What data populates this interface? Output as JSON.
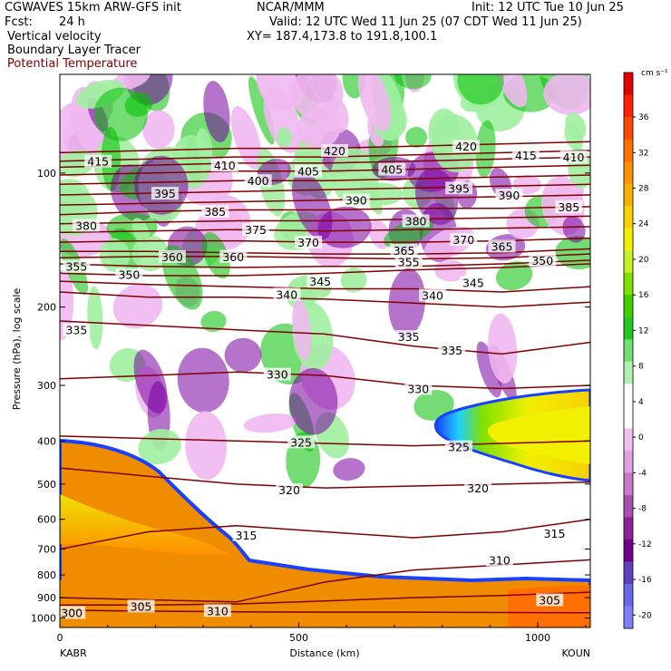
{
  "header": {
    "model": "CGWAVES 15km ARW-GFS init",
    "org": "NCAR/MMM",
    "init": "Init: 12 UTC Tue 10 Jun 25",
    "fcst_label": "Fcst:",
    "fcst_value": "24 h",
    "valid": "Valid: 12 UTC Wed 11 Jun 25 (07 CDT Wed 11 Jun 25)",
    "field1": "Vertical velocity",
    "xy": "XY= 187.4,173.8 to 191.8,100.1",
    "field2": "Boundary Layer Tracer",
    "field3": "Potential Temperature"
  },
  "colors": {
    "theta_line": "#800000",
    "theta_title": "#800000",
    "bl_tracer": "#f08c00",
    "up_dark": "#00c000",
    "up_light": "#a0f0a0",
    "down_light": "#f0b8f0",
    "down_dark": "#7800a0"
  },
  "chart_data": {
    "type": "heatmap",
    "title": "",
    "xlabel": "Distance (km)",
    "ylabel": "Pressure (hPa), log scale",
    "xlim": [
      0,
      1110
    ],
    "ylim": [
      1050,
      60
    ],
    "y_scale": "log",
    "x_ticks": [
      0,
      500,
      1000
    ],
    "y_ticks": [
      100,
      200,
      300,
      400,
      500,
      600,
      700,
      800,
      900,
      1000
    ],
    "endpoints": {
      "left": "KABR",
      "right": "KOUN"
    },
    "colorbar": {
      "unit": "cm s⁻¹",
      "tick_labels": [
        "36",
        "32",
        "28",
        "24",
        "20",
        "16",
        "12",
        "8",
        "4",
        "0",
        "-4",
        "-8",
        "-12",
        "-16",
        "-20"
      ],
      "colors": [
        "#e00000",
        "#ff2000",
        "#ff4800",
        "#ff7000",
        "#ff9000",
        "#f8b000",
        "#f8d000",
        "#f0f000",
        "#c8f028",
        "#80e000",
        "#40d000",
        "#20c820",
        "#70e070",
        "#b0f0b0",
        "#ffffff",
        "#ffffff",
        "#f0c0f0",
        "#e0a0e0",
        "#c878c8",
        "#a850b0",
        "#902098",
        "#700088",
        "#6040c0",
        "#6868e8",
        "#8080ff"
      ]
    },
    "theta_contours": [
      {
        "label": "300",
        "p": [
          960,
          965,
          968,
          970,
          970,
          972,
          973
        ]
      },
      {
        "label": "305",
        "p": [
          935,
          935,
          930,
          915,
          900,
          890,
          875
        ]
      },
      {
        "label": "310",
        "p": [
          900,
          910,
          920,
          830,
          780,
          760,
          740
        ]
      },
      {
        "label": "315",
        "p": [
          700,
          640,
          620,
          640,
          660,
          640,
          600
        ]
      },
      {
        "label": "320",
        "p": [
          460,
          480,
          500,
          510,
          505,
          500,
          495
        ]
      },
      {
        "label": "325",
        "p": [
          390,
          395,
          400,
          405,
          410,
          405,
          400
        ]
      },
      {
        "label": "330",
        "p": [
          290,
          285,
          280,
          285,
          300,
          305,
          300
        ]
      },
      {
        "label": "335",
        "p": [
          215,
          220,
          225,
          230,
          245,
          255,
          240
        ]
      },
      {
        "label": "340",
        "p": [
          185,
          190,
          190,
          192,
          196,
          200,
          195
        ]
      },
      {
        "label": "345",
        "p": [
          175,
          178,
          180,
          182,
          182,
          185,
          180
        ]
      },
      {
        "label": "350",
        "p": [
          168,
          170,
          170,
          168,
          165,
          163,
          160
        ]
      },
      {
        "label": "355",
        "p": [
          160,
          162,
          163,
          162,
          162,
          160,
          157
        ]
      },
      {
        "label": "360",
        "p": [
          155,
          154,
          154,
          155,
          156,
          155,
          152
        ]
      },
      {
        "label": "365",
        "p": [
          150,
          150,
          151,
          152,
          152,
          151,
          148
        ]
      },
      {
        "label": "370",
        "p": [
          143,
          142,
          142,
          143,
          143,
          142,
          140
        ]
      },
      {
        "label": "375",
        "p": [
          136,
          135,
          134,
          135,
          134,
          133,
          132
        ]
      },
      {
        "label": "380",
        "p": [
          130,
          129,
          128,
          128,
          127,
          126,
          125
        ]
      },
      {
        "label": "385",
        "p": [
          124,
          122,
          121,
          121,
          120,
          120,
          119
        ]
      },
      {
        "label": "390",
        "p": [
          118,
          117,
          116,
          115,
          114,
          113,
          112
        ]
      },
      {
        "label": "395",
        "p": [
          112,
          111,
          110,
          109,
          108,
          107,
          106
        ]
      },
      {
        "label": "400",
        "p": [
          106,
          105,
          104,
          104,
          103,
          102,
          101
        ]
      },
      {
        "label": "405",
        "p": [
          101,
          100,
          99,
          99,
          98,
          97,
          96
        ]
      },
      {
        "label": "410",
        "p": [
          97,
          96,
          95,
          95,
          94,
          93,
          92
        ]
      },
      {
        "label": "415",
        "p": [
          94,
          93,
          92,
          92,
          91,
          90,
          89
        ]
      },
      {
        "label": "420",
        "p": [
          90,
          89,
          88,
          88,
          87,
          86,
          85
        ]
      }
    ],
    "theta_x": [
      0,
      185,
      370,
      555,
      740,
      925,
      1110
    ],
    "theta_labels": [
      {
        "text": "300",
        "x": 25,
        "p": 972
      },
      {
        "text": "305",
        "x": 170,
        "p": 940
      },
      {
        "text": "310",
        "x": 330,
        "p": 962
      },
      {
        "text": "315",
        "x": 390,
        "p": 650
      },
      {
        "text": "310",
        "x": 920,
        "p": 740
      },
      {
        "text": "305",
        "x": 1025,
        "p": 910
      },
      {
        "text": "315",
        "x": 1035,
        "p": 645
      },
      {
        "text": "320",
        "x": 480,
        "p": 515
      },
      {
        "text": "320",
        "x": 875,
        "p": 510
      },
      {
        "text": "325",
        "x": 505,
        "p": 402
      },
      {
        "text": "325",
        "x": 835,
        "p": 412
      },
      {
        "text": "330",
        "x": 455,
        "p": 283
      },
      {
        "text": "330",
        "x": 750,
        "p": 305
      },
      {
        "text": "335",
        "x": 35,
        "p": 225
      },
      {
        "text": "335",
        "x": 730,
        "p": 233
      },
      {
        "text": "335",
        "x": 820,
        "p": 250
      },
      {
        "text": "340",
        "x": 475,
        "p": 187
      },
      {
        "text": "340",
        "x": 780,
        "p": 188
      },
      {
        "text": "345",
        "x": 545,
        "p": 175
      },
      {
        "text": "345",
        "x": 865,
        "p": 176
      },
      {
        "text": "350",
        "x": 145,
        "p": 169
      },
      {
        "text": "350",
        "x": 1010,
        "p": 157
      },
      {
        "text": "355",
        "x": 35,
        "p": 162
      },
      {
        "text": "355",
        "x": 730,
        "p": 158
      },
      {
        "text": "360",
        "x": 235,
        "p": 154
      },
      {
        "text": "360",
        "x": 363,
        "p": 154
      },
      {
        "text": "365",
        "x": 720,
        "p": 149
      },
      {
        "text": "365",
        "x": 925,
        "p": 146
      },
      {
        "text": "370",
        "x": 520,
        "p": 143
      },
      {
        "text": "370",
        "x": 845,
        "p": 141
      },
      {
        "text": "375",
        "x": 410,
        "p": 134
      },
      {
        "text": "380",
        "x": 55,
        "p": 131
      },
      {
        "text": "380",
        "x": 745,
        "p": 128
      },
      {
        "text": "385",
        "x": 325,
        "p": 122
      },
      {
        "text": "385",
        "x": 1065,
        "p": 119
      },
      {
        "text": "390",
        "x": 620,
        "p": 115
      },
      {
        "text": "390",
        "x": 940,
        "p": 112
      },
      {
        "text": "395",
        "x": 220,
        "p": 111
      },
      {
        "text": "395",
        "x": 835,
        "p": 108
      },
      {
        "text": "400",
        "x": 415,
        "p": 104
      },
      {
        "text": "405",
        "x": 520,
        "p": 99
      },
      {
        "text": "405",
        "x": 695,
        "p": 98
      },
      {
        "text": "410",
        "x": 345,
        "p": 96
      },
      {
        "text": "410",
        "x": 1075,
        "p": 92
      },
      {
        "text": "415",
        "x": 80,
        "p": 94
      },
      {
        "text": "415",
        "x": 975,
        "p": 91
      },
      {
        "text": "420",
        "x": 575,
        "p": 89
      },
      {
        "text": "420",
        "x": 850,
        "p": 87
      }
    ]
  }
}
